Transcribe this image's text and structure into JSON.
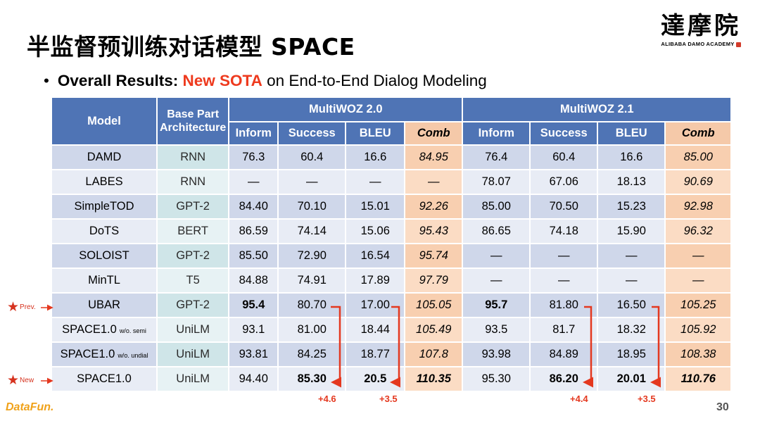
{
  "title": "半监督预训练对话模型 SPACE",
  "logo": {
    "cn": "達摩院",
    "en": "ALIBABA DAMO ACADEMY"
  },
  "subtitle": {
    "bullet": "•",
    "prefix": "Overall Results:",
    "highlight": "New SOTA",
    "rest": "on End-to-End Dialog Modeling"
  },
  "table": {
    "headers": {
      "model": "Model",
      "arch": "Base Part Architecture",
      "group1": "MultiWOZ 2.0",
      "group2": "MultiWOZ 2.1",
      "cols": [
        "Inform",
        "Success",
        "BLEU",
        "Comb"
      ]
    },
    "rows": [
      {
        "model": "DAMD",
        "sub": "",
        "arch": "RNN",
        "v20": [
          "76.3",
          "60.4",
          "16.6",
          "84.95"
        ],
        "v21": [
          "76.4",
          "60.4",
          "16.6",
          "85.00"
        ]
      },
      {
        "model": "LABES",
        "sub": "",
        "arch": "RNN",
        "v20": [
          "—",
          "—",
          "—",
          "—"
        ],
        "v21": [
          "78.07",
          "67.06",
          "18.13",
          "90.69"
        ]
      },
      {
        "model": "SimpleTOD",
        "sub": "",
        "arch": "GPT-2",
        "v20": [
          "84.40",
          "70.10",
          "15.01",
          "92.26"
        ],
        "v21": [
          "85.00",
          "70.50",
          "15.23",
          "92.98"
        ]
      },
      {
        "model": "DoTS",
        "sub": "",
        "arch": "BERT",
        "v20": [
          "86.59",
          "74.14",
          "15.06",
          "95.43"
        ],
        "v21": [
          "86.65",
          "74.18",
          "15.90",
          "96.32"
        ]
      },
      {
        "model": "SOLOIST",
        "sub": "",
        "arch": "GPT-2",
        "v20": [
          "85.50",
          "72.90",
          "16.54",
          "95.74"
        ],
        "v21": [
          "—",
          "—",
          "—",
          "—"
        ]
      },
      {
        "model": "MinTL",
        "sub": "",
        "arch": "T5",
        "v20": [
          "84.88",
          "74.91",
          "17.89",
          "97.79"
        ],
        "v21": [
          "—",
          "—",
          "—",
          "—"
        ]
      },
      {
        "model": "UBAR",
        "sub": "",
        "arch": "GPT-2",
        "v20": [
          "95.4",
          "80.70",
          "17.00",
          "105.05"
        ],
        "v21": [
          "95.7",
          "81.80",
          "16.50",
          "105.25"
        ]
      },
      {
        "model": "SPACE1.0",
        "sub": "w/o. semi",
        "arch": "UniLM",
        "v20": [
          "93.1",
          "81.00",
          "18.44",
          "105.49"
        ],
        "v21": [
          "93.5",
          "81.7",
          "18.32",
          "105.92"
        ]
      },
      {
        "model": "SPACE1.0",
        "sub": "w/o. undial",
        "arch": "UniLM",
        "v20": [
          "93.81",
          "84.25",
          "18.77",
          "107.8"
        ],
        "v21": [
          "93.98",
          "84.89",
          "18.95",
          "108.38"
        ]
      },
      {
        "model": "SPACE1.0",
        "sub": "",
        "arch": "UniLM",
        "v20": [
          "94.40",
          "85.30",
          "20.5",
          "110.35"
        ],
        "v21": [
          "95.30",
          "86.20",
          "20.01",
          "110.76"
        ]
      }
    ]
  },
  "markers": {
    "prev": "Prev.",
    "new": "New"
  },
  "deltas": [
    "+4.6",
    "+3.5",
    "+4.4",
    "+3.5"
  ],
  "page_number": "30",
  "footer_logo": "DataFun.",
  "colors": {
    "header_blue": "#4f74b5",
    "comb_orange": "#f8cfb0",
    "accent_red": "#ee3a1e"
  }
}
